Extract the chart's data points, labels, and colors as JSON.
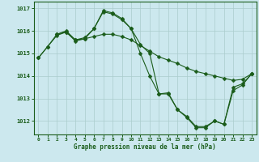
{
  "title": "Graphe pression niveau de la mer (hPa)",
  "xlim": [
    -0.5,
    23.5
  ],
  "ylim": [
    1011.4,
    1017.3
  ],
  "yticks": [
    1012,
    1013,
    1014,
    1015,
    1016,
    1017
  ],
  "xticks": [
    0,
    1,
    2,
    3,
    4,
    5,
    6,
    7,
    8,
    9,
    10,
    11,
    12,
    13,
    14,
    15,
    16,
    17,
    18,
    19,
    20,
    21,
    22,
    23
  ],
  "background_color": "#cce8ee",
  "grid_color": "#aacccc",
  "line_color": "#1a5c1a",
  "series": [
    {
      "x": [
        0,
        1,
        2,
        3,
        4,
        5,
        6,
        7,
        8,
        9,
        10,
        11,
        12,
        13,
        14,
        15,
        16,
        17,
        18,
        19,
        20,
        21,
        22,
        23
      ],
      "y": [
        1014.8,
        1015.3,
        1015.8,
        1015.95,
        1015.55,
        1015.65,
        1015.75,
        1015.85,
        1015.85,
        1015.75,
        1015.6,
        1015.35,
        1015.1,
        1014.85,
        1014.7,
        1014.55,
        1014.35,
        1014.2,
        1014.1,
        1014.0,
        1013.9,
        1013.8,
        1013.85,
        1014.1
      ]
    },
    {
      "x": [
        0,
        1,
        2,
        3,
        4,
        5,
        6,
        7,
        8,
        9,
        10,
        11,
        12,
        13,
        14,
        15,
        16,
        17,
        18,
        19,
        20,
        21,
        22,
        23
      ],
      "y": [
        1014.8,
        1015.3,
        1015.85,
        1015.95,
        1015.6,
        1015.65,
        1016.1,
        1016.85,
        1016.75,
        1016.5,
        1016.1,
        1015.0,
        1014.0,
        1013.2,
        1013.2,
        1012.5,
        1012.15,
        1011.7,
        1011.7,
        1012.0,
        1011.85,
        1013.5,
        1013.65,
        1014.1
      ]
    },
    {
      "x": [
        2,
        3,
        4,
        5,
        6,
        7,
        8,
        9,
        10,
        11,
        12,
        13,
        14,
        15,
        16,
        17,
        18,
        19,
        20,
        21,
        22,
        23
      ],
      "y": [
        1015.85,
        1016.0,
        1015.6,
        1015.7,
        1016.1,
        1016.9,
        1016.8,
        1016.55,
        1016.1,
        1015.4,
        1015.0,
        1013.2,
        1013.25,
        1012.5,
        1012.2,
        1011.75,
        1011.75,
        1012.0,
        1011.85,
        1013.35,
        1013.6,
        1014.1
      ]
    }
  ]
}
